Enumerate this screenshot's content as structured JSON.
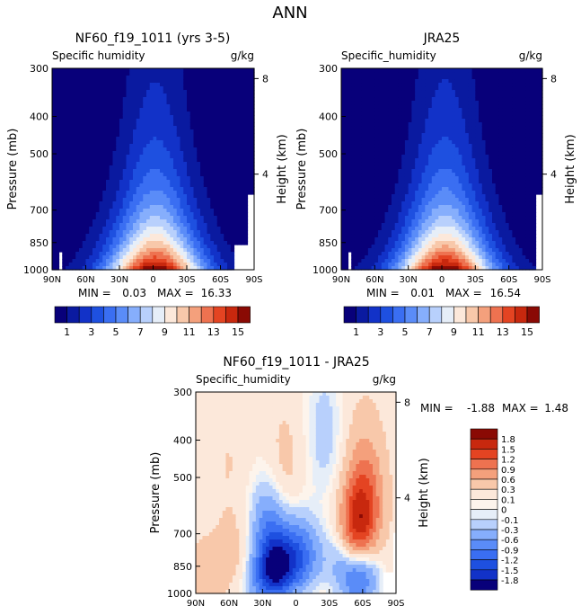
{
  "page_title": "ANN",
  "chart_data": [
    {
      "type": "heatmap",
      "title": "NF60_f19_1011 (yrs 3-5)",
      "subtitle_left": "Specific humidity",
      "subtitle_right": "g/kg",
      "xlabel": "",
      "ylabel": "Pressure (mb)",
      "y2label": "Height (km)",
      "x_ticks": [
        "90N",
        "60N",
        "30N",
        "0",
        "30S",
        "60S",
        "90S"
      ],
      "y_ticks": [
        "300",
        "400",
        "500",
        "700",
        "850",
        "1000"
      ],
      "y2_ticks": [
        "8",
        "4"
      ],
      "ylim": [
        1000,
        300
      ],
      "min_label": "MIN =",
      "min_value": "0.03",
      "max_label": "MAX =",
      "max_value": "16.33",
      "colorbar_levels": [
        "1",
        "3",
        "5",
        "7",
        "9",
        "11",
        "13",
        "15"
      ],
      "max_q": 16.33,
      "peak_lat": -2
    },
    {
      "type": "heatmap",
      "title": "JRA25",
      "subtitle_left": "Specific_humidity",
      "subtitle_right": "g/kg",
      "xlabel": "",
      "ylabel": "Pressure (mb)",
      "y2label": "Height (km)",
      "x_ticks": [
        "90N",
        "60N",
        "30N",
        "0",
        "30S",
        "60S",
        "90S"
      ],
      "y_ticks": [
        "300",
        "400",
        "500",
        "700",
        "850",
        "1000"
      ],
      "y2_ticks": [
        "8",
        "4"
      ],
      "ylim": [
        1000,
        300
      ],
      "min_label": "MIN =",
      "min_value": "0.01",
      "max_label": "MAX =",
      "max_value": "16.54",
      "colorbar_levels": [
        "1",
        "3",
        "5",
        "7",
        "9",
        "11",
        "13",
        "15"
      ],
      "max_q": 16.54,
      "peak_lat": -3
    },
    {
      "type": "heatmap",
      "title": "NF60_f19_1011 - JRA25",
      "subtitle_left": "Specific_humidity",
      "subtitle_right": "g/kg",
      "xlabel": "",
      "ylabel": "Pressure (mb)",
      "y2label": "Height (km)",
      "x_ticks": [
        "90N",
        "60N",
        "30N",
        "0",
        "30S",
        "60S",
        "90S"
      ],
      "y_ticks": [
        "300",
        "400",
        "500",
        "700",
        "850",
        "1000"
      ],
      "y2_ticks": [
        "8",
        "4"
      ],
      "ylim": [
        1000,
        300
      ],
      "min_label": "MIN =",
      "min_value": "-1.88",
      "max_label": "MAX =",
      "max_value": "1.48",
      "colorbar_levels": [
        "1.8",
        "1.5",
        "1.2",
        "0.9",
        "0.6",
        "0.3",
        "0.1",
        "0",
        "-0.1",
        "-0.3",
        "-0.6",
        "-0.9",
        "-1.2",
        "-1.5",
        "-1.8"
      ],
      "features": [
        {
          "lat": 17,
          "p": 850,
          "amp": -1.88
        },
        {
          "lat": -5,
          "p": 800,
          "amp": -1.1
        },
        {
          "lat": 25,
          "p": 640,
          "amp": -0.7
        },
        {
          "lat": 30,
          "p": 930,
          "amp": -0.6
        },
        {
          "lat": -55,
          "p": 700,
          "amp": 1.48
        },
        {
          "lat": -62,
          "p": 540,
          "amp": 0.8
        },
        {
          "lat": -57,
          "p": 900,
          "amp": -1.2
        },
        {
          "lat": -40,
          "p": 800,
          "amp": -0.5
        },
        {
          "lat": 80,
          "p": 900,
          "amp": 0.35
        },
        {
          "lat": 55,
          "p": 780,
          "amp": 0.25
        },
        {
          "lat": 12,
          "p": 500,
          "amp": 0.3
        },
        {
          "lat": -22,
          "p": 360,
          "amp": -0.2
        },
        {
          "lat": -30,
          "p": 420,
          "amp": -0.2
        },
        {
          "lat": 60,
          "p": 450,
          "amp": 0.12
        }
      ]
    }
  ],
  "colors": {
    "q_palette": [
      "#08007a",
      "#0a1aa0",
      "#1232c8",
      "#1e50e0",
      "#3a6ef2",
      "#5a8cf8",
      "#86aefc",
      "#b8d0fc",
      "#e6eef8",
      "#fce8da",
      "#f8c8aa",
      "#f4a07c",
      "#ee7250",
      "#e44422",
      "#c8280e",
      "#8a0a04"
    ],
    "d_palette": [
      "#8a0a04",
      "#c8280e",
      "#e44422",
      "#ee7250",
      "#f4a07c",
      "#f8c8aa",
      "#fce8da",
      "#fdf4ec",
      "#e6eef8",
      "#b8d0fc",
      "#86aefc",
      "#5a8cf8",
      "#3a6ef2",
      "#1e50e0",
      "#1232c8",
      "#08007a"
    ]
  }
}
